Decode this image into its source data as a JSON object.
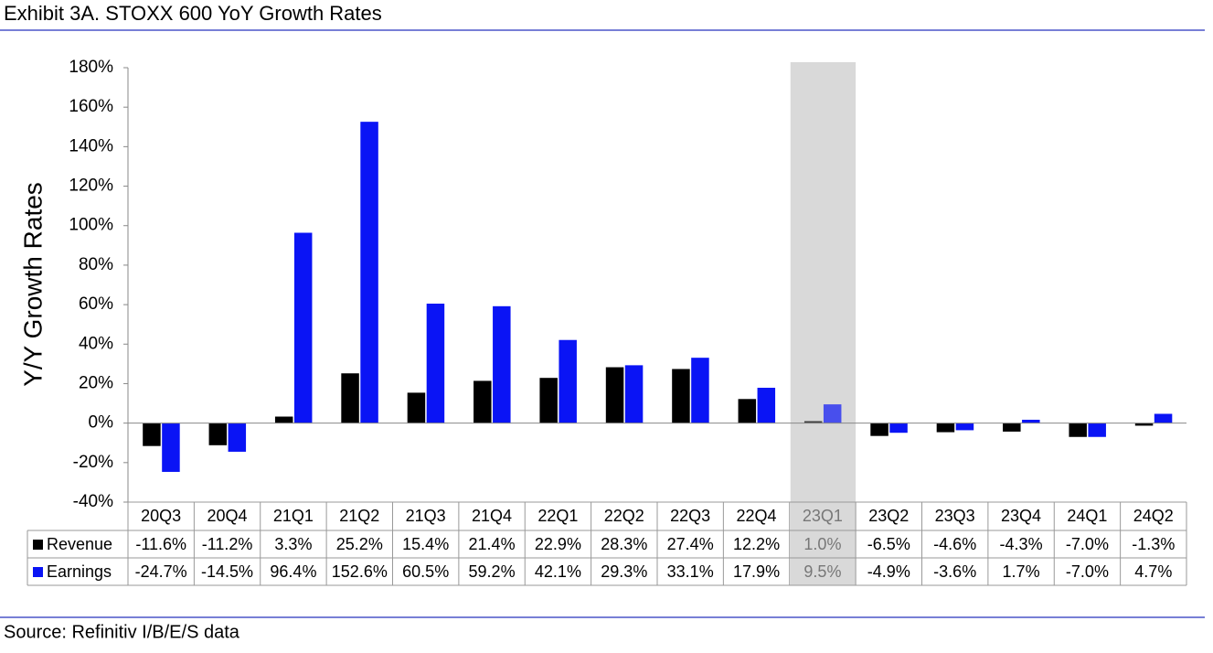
{
  "header": {
    "title": "Exhibit 3A.  STOXX 600 YoY Growth Rates"
  },
  "chart_data": {
    "type": "bar",
    "y_label": "Y/Y Growth Rates",
    "categories": [
      "20Q3",
      "20Q4",
      "21Q1",
      "21Q2",
      "21Q3",
      "21Q4",
      "22Q1",
      "22Q2",
      "22Q3",
      "22Q4",
      "23Q1",
      "23Q2",
      "23Q3",
      "23Q4",
      "24Q1",
      "24Q2"
    ],
    "series": [
      {
        "name": "Revenue",
        "color": "#000000",
        "values": [
          -11.6,
          -11.2,
          3.3,
          25.2,
          15.4,
          21.4,
          22.9,
          28.3,
          27.4,
          12.2,
          1.0,
          -6.5,
          -4.6,
          -4.3,
          -7.0,
          -1.3
        ],
        "value_labels": [
          "-11.6%",
          "-11.2%",
          "3.3%",
          "25.2%",
          "15.4%",
          "21.4%",
          "22.9%",
          "28.3%",
          "27.4%",
          "12.2%",
          "1.0%",
          "-6.5%",
          "-4.6%",
          "-4.3%",
          "-7.0%",
          "-1.3%"
        ]
      },
      {
        "name": "Earnings",
        "color": "#0a14f5",
        "values": [
          -24.7,
          -14.5,
          96.4,
          152.6,
          60.5,
          59.2,
          42.1,
          29.3,
          33.1,
          17.9,
          9.5,
          -4.9,
          -3.6,
          1.7,
          -7.0,
          4.7
        ],
        "value_labels": [
          "-24.7%",
          "-14.5%",
          "96.4%",
          "152.6%",
          "60.5%",
          "59.2%",
          "42.1%",
          "29.3%",
          "33.1%",
          "17.9%",
          "9.5%",
          "-4.9%",
          "-3.6%",
          "1.7%",
          "-7.0%",
          "4.7%"
        ]
      }
    ],
    "ylim": [
      -40,
      180
    ],
    "yticks": [
      {
        "value": -40,
        "label": "-40%"
      },
      {
        "value": -20,
        "label": "-20%"
      },
      {
        "value": 0,
        "label": "0%"
      },
      {
        "value": 20,
        "label": "20%"
      },
      {
        "value": 40,
        "label": "40%"
      },
      {
        "value": 60,
        "label": "60%"
      },
      {
        "value": 80,
        "label": "80%"
      },
      {
        "value": 100,
        "label": "100%"
      },
      {
        "value": 120,
        "label": "120%"
      },
      {
        "value": 140,
        "label": "140%"
      },
      {
        "value": 160,
        "label": "160%"
      },
      {
        "value": 180,
        "label": "180%"
      }
    ],
    "highlight": "23Q1",
    "source": "Source: Refinitiv I/B/E/S data"
  }
}
